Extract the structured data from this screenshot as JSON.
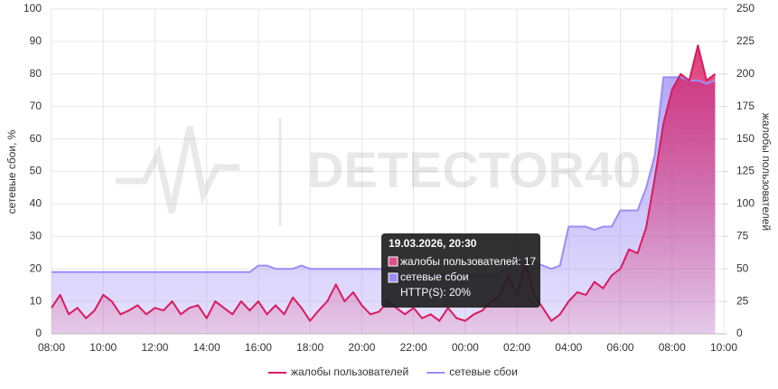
{
  "chart_data": {
    "type": "line",
    "watermark": "DETECTOR40",
    "ylabel": "сетевые сбои, %",
    "y2label": "жалобы пользователей",
    "categories": [
      "08:00",
      null,
      null,
      null,
      null,
      null,
      "10:00",
      null,
      null,
      null,
      null,
      null,
      "12:00",
      null,
      null,
      null,
      null,
      null,
      "14:00",
      null,
      null,
      null,
      null,
      null,
      "16:00",
      null,
      null,
      null,
      null,
      null,
      "18:00",
      null,
      null,
      null,
      null,
      null,
      "20:00",
      null,
      null,
      null,
      null,
      null,
      "22:00",
      null,
      null,
      null,
      null,
      null,
      "00:00",
      null,
      null,
      null,
      null,
      null,
      "02:00",
      null,
      null,
      null,
      null,
      null,
      "04:00",
      null,
      null,
      null,
      null,
      null,
      "06:00",
      null,
      null,
      null,
      null,
      null,
      "08:00",
      null,
      null,
      null,
      null,
      null,
      "10:00"
    ],
    "ylim": [
      0,
      100
    ],
    "yticks": [
      0,
      10,
      20,
      30,
      40,
      50,
      60,
      70,
      80,
      90,
      100
    ],
    "y2lim": [
      0,
      250
    ],
    "y2ticks": [
      0,
      25,
      50,
      75,
      100,
      125,
      150,
      175,
      200,
      225,
      250
    ],
    "grid": true,
    "legend": "bottom",
    "series": [
      {
        "name": "жалобы пользователей",
        "color": "#d81b60",
        "axis": "y2",
        "values": [
          20,
          30,
          15,
          20,
          12,
          18,
          30,
          25,
          15,
          18,
          22,
          15,
          20,
          18,
          25,
          15,
          20,
          22,
          12,
          25,
          20,
          15,
          25,
          18,
          25,
          15,
          22,
          15,
          28,
          20,
          10,
          18,
          25,
          38,
          25,
          32,
          22,
          15,
          17,
          25,
          20,
          15,
          20,
          12,
          15,
          10,
          20,
          12,
          10,
          15,
          18,
          25,
          30,
          45,
          30,
          55,
          30,
          20,
          10,
          15,
          25,
          32,
          30,
          40,
          35,
          45,
          50,
          65,
          62,
          82,
          120,
          162,
          188,
          200,
          195,
          222,
          195,
          200,
          null
        ]
      },
      {
        "name": "сетевые сбои",
        "color": "#9c8cf5",
        "values": [
          19,
          19,
          19,
          19,
          19,
          19,
          19,
          19,
          19,
          19,
          19,
          19,
          19,
          19,
          19,
          19,
          19,
          19,
          19,
          19,
          19,
          19,
          19,
          19,
          21,
          21,
          20,
          20,
          20,
          21,
          20,
          20,
          20,
          20,
          20,
          20,
          20,
          20,
          20,
          20,
          19,
          18,
          18,
          18,
          18,
          18,
          18,
          18,
          18,
          18,
          18,
          18,
          19,
          20,
          22,
          22,
          22,
          21,
          20,
          21,
          33,
          33,
          33,
          32,
          33,
          33,
          38,
          38,
          38,
          45,
          55,
          79,
          79,
          79,
          78,
          78,
          77,
          78,
          null
        ]
      }
    ],
    "tooltip": {
      "title": "19.03.2026, 20:30",
      "lines": [
        "жалобы пользователей: 17",
        "сетевые сбои",
        "HTTP(S): 20%"
      ]
    }
  }
}
